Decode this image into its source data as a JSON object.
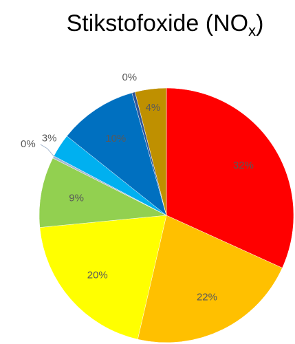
{
  "chart_data": {
    "type": "pie",
    "title": {
      "text": "Stikstofoxide (NO",
      "subscript": "x",
      "suffix": ")"
    },
    "categories": [
      null,
      null,
      null,
      null,
      null,
      null,
      null,
      null,
      null
    ],
    "values": [
      32,
      22,
      20,
      9,
      0.3,
      3,
      10,
      0.4,
      4
    ],
    "value_labels": [
      "32%",
      "22%",
      "20%",
      "9%",
      "0%",
      "3%",
      "10%",
      "0%",
      "4%"
    ],
    "colors": [
      "#ff0000",
      "#ffc000",
      "#ffff00",
      "#92d050",
      "#a5b8d0",
      "#00b0f0",
      "#0070c0",
      "#2f5597",
      "#bf9000"
    ]
  }
}
